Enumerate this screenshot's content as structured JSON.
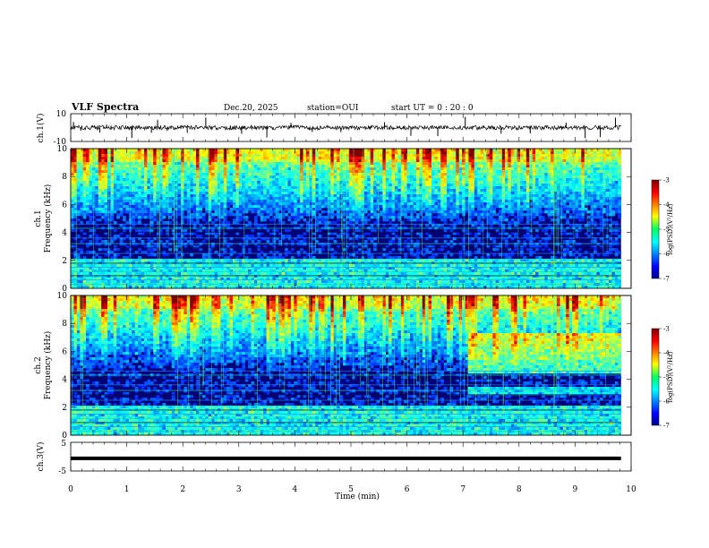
{
  "header": {
    "title": "VLF Spectra",
    "date": "Dec.20, 2025",
    "station": "station=OUI",
    "start": "start  UT =   0  : 20 : 0"
  },
  "chart_data": [
    {
      "panel": "ch1-waveform",
      "type": "line",
      "ylabel": "ch.1(V)",
      "ylim": [
        -10,
        10
      ],
      "yticks": [
        "10",
        "-10"
      ],
      "baseline": 0
    },
    {
      "panel": "ch1-spectrogram",
      "type": "heatmap",
      "ylabel_channel": "ch.1",
      "ylabel": "Frequency  (kHz)",
      "ylim": [
        0,
        10
      ],
      "yticks": [
        "0",
        "2",
        "4",
        "6",
        "8",
        "10"
      ],
      "colorbar": {
        "label": "log(PSD)(V²/Hz)",
        "range": [
          -7,
          -3
        ],
        "ticks": [
          "-3",
          "-4",
          "-5",
          "-6",
          "-7"
        ]
      }
    },
    {
      "panel": "ch2-spectrogram",
      "type": "heatmap",
      "ylabel_channel": "ch.2",
      "ylabel": "Frequency  (kHz)",
      "ylim": [
        0,
        10
      ],
      "yticks": [
        "0",
        "2",
        "4",
        "6",
        "8",
        "10"
      ],
      "colorbar": {
        "label": "log(PSD)(V²/Hz)",
        "range": [
          -7,
          -3
        ],
        "ticks": [
          "-3",
          "-4",
          "-5",
          "-6",
          "-7"
        ]
      }
    },
    {
      "panel": "ch3-waveform",
      "type": "line",
      "ylabel": "ch.3(V)",
      "ylim": [
        -5,
        5
      ],
      "yticks": [
        "5",
        "-5"
      ],
      "constant_value": -0.6
    }
  ],
  "xaxis": {
    "label": "Time  (min)",
    "range": [
      0,
      10
    ],
    "data_end": 9.82,
    "ticks": [
      "0",
      "1",
      "2",
      "3",
      "4",
      "5",
      "6",
      "7",
      "8",
      "9",
      "10"
    ]
  },
  "colors": {
    "background_low": "#00007a",
    "mid": "#1fb0e8",
    "high": "#28e060",
    "peak": "#ff2000"
  }
}
